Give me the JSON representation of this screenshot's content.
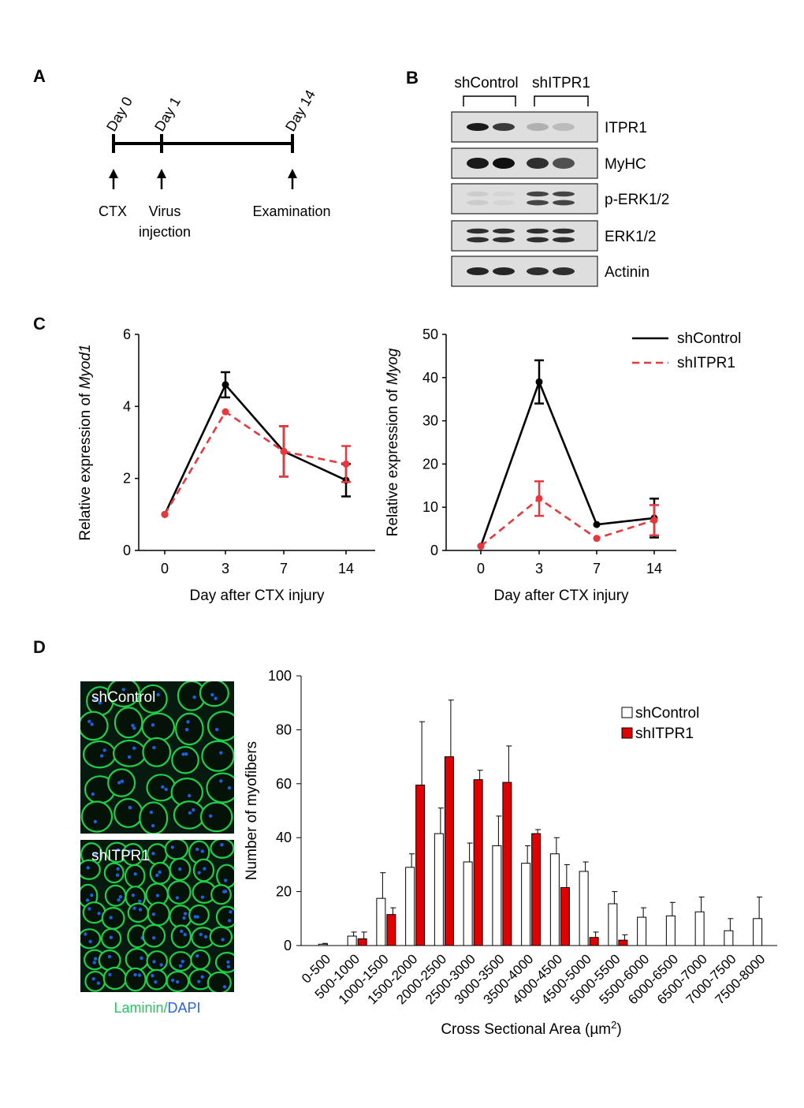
{
  "panels": {
    "a": "A",
    "b": "B",
    "c": "C",
    "d": "D"
  },
  "timeline": {
    "days": [
      "Day 0",
      "Day 1",
      "Day 14"
    ],
    "events": [
      "CTX",
      "Virus",
      "injection",
      "Examination"
    ]
  },
  "western": {
    "groups": [
      "shControl",
      "shITPR1"
    ],
    "bands": [
      {
        "label": "ITPR1",
        "intensity": [
          0.95,
          0.8,
          0.25,
          0.2
        ]
      },
      {
        "label": "MyHC",
        "intensity": [
          0.95,
          1.0,
          0.85,
          0.7
        ]
      },
      {
        "label": "p-ERK1/2",
        "intensity": [
          0.12,
          0.08,
          0.75,
          0.75
        ]
      },
      {
        "label": "ERK1/2",
        "intensity": [
          0.85,
          0.85,
          0.85,
          0.85
        ]
      },
      {
        "label": "Actinin",
        "intensity": [
          0.9,
          0.9,
          0.85,
          0.85
        ]
      }
    ]
  },
  "legend_c": {
    "control": "shControl",
    "itpr1": "shITPR1"
  },
  "legend_d": {
    "control": "shControl",
    "itpr1": "shITPR1"
  },
  "micrographs": {
    "top_label": "shControl",
    "bottom_label": "shITPR1",
    "caption_green": "Laminin",
    "caption_sep": "/",
    "caption_blue": "DAPI"
  },
  "colors": {
    "control": "#000000",
    "itpr1": "#e8383d",
    "bar_red": "#e00000",
    "laminin": "#1fcf4a",
    "dapi": "#1f5fe0"
  },
  "chart_data": [
    {
      "type": "line",
      "xlabel": "Day after CTX  injury",
      "ylabel_prefix": "Relative  expression of ",
      "ylabel_gene": "Myod1",
      "x": [
        0,
        3,
        7,
        14
      ],
      "ylim": [
        0,
        6
      ],
      "yticks": [
        0,
        2,
        4,
        6
      ],
      "series": [
        {
          "name": "shControl",
          "values": [
            1.0,
            4.6,
            2.75,
            1.95
          ],
          "errors": [
            0.0,
            0.35,
            0.7,
            0.45
          ]
        },
        {
          "name": "shITPR1",
          "values": [
            1.0,
            3.85,
            2.75,
            2.4
          ],
          "errors": [
            0.0,
            0.0,
            0.7,
            0.5
          ]
        }
      ]
    },
    {
      "type": "line",
      "xlabel": "Day after CTX  injury",
      "ylabel_prefix": "Relative  expression of ",
      "ylabel_gene": "Myog",
      "x": [
        0,
        3,
        7,
        14
      ],
      "ylim": [
        0,
        50
      ],
      "yticks": [
        0,
        10,
        20,
        30,
        40,
        50
      ],
      "series": [
        {
          "name": "shControl",
          "values": [
            1.0,
            39.0,
            6.0,
            7.5
          ],
          "errors": [
            0.0,
            5.0,
            0.0,
            4.5
          ]
        },
        {
          "name": "shITPR1",
          "values": [
            1.0,
            12.0,
            2.8,
            7.0
          ],
          "errors": [
            0.0,
            4.0,
            0.0,
            3.5
          ]
        }
      ]
    },
    {
      "type": "bar",
      "xlabel": "Cross Sectional Area (µm",
      "xlabel_sup": "2",
      "xlabel_end": ")",
      "ylabel": "Number of myofibers",
      "ylim": [
        0,
        100
      ],
      "yticks": [
        0,
        20,
        40,
        60,
        80,
        100
      ],
      "categories": [
        "0-500",
        "500-1000",
        "1000-1500",
        "1500-2000",
        "2000-2500",
        "2500-3000",
        "3000-3500",
        "3500-4000",
        "4000-4500",
        "4500-5000",
        "5000-5500",
        "5500-6000",
        "6000-6500",
        "6500-7000",
        "7000-7500",
        "7500-8000"
      ],
      "series": [
        {
          "name": "shControl",
          "values": [
            0.5,
            3.5,
            17.5,
            29,
            41.5,
            31,
            37,
            30.5,
            34,
            27.5,
            15.5,
            10.5,
            11,
            12.5,
            5.5,
            10
          ],
          "errors": [
            0.3,
            1.5,
            9.5,
            5,
            9.5,
            7,
            11,
            6.5,
            6,
            3.5,
            4.5,
            3.5,
            5,
            5.5,
            4.5,
            8
          ]
        },
        {
          "name": "shITPR1",
          "values": [
            0,
            2.5,
            11.5,
            59.5,
            70,
            61.5,
            60.5,
            41.5,
            21.5,
            3,
            2,
            0,
            0,
            0,
            0,
            0
          ],
          "errors": [
            0,
            2.5,
            2.5,
            23.5,
            21,
            3.5,
            13.5,
            1.5,
            8.5,
            2,
            2,
            0,
            0,
            0,
            0,
            0
          ]
        }
      ]
    }
  ]
}
